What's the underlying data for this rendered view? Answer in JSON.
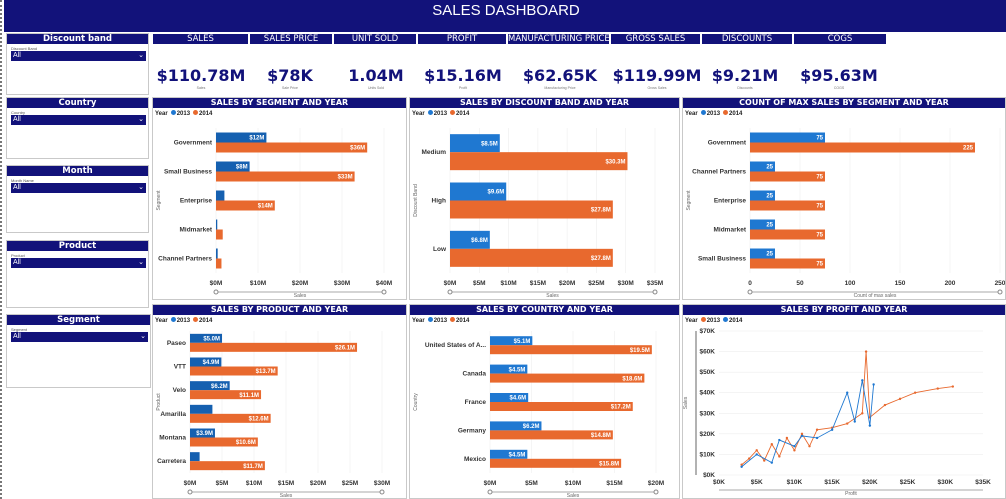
{
  "header": {
    "title": "SALES DASHBOARD"
  },
  "kpis": [
    {
      "label": "SALES",
      "value": "$110.78M",
      "sub": "Sales"
    },
    {
      "label": "SALES PRICE",
      "value": "$78K",
      "sub": "Sale Price"
    },
    {
      "label": "UNIT SOLD",
      "value": "1.04M",
      "sub": "Units Sold"
    },
    {
      "label": "PROFIT",
      "value": "$15.16M",
      "sub": "Profit"
    },
    {
      "label": "MANUFACTURING PRICE",
      "value": "$62.65K",
      "sub": "Manufacturing Price"
    },
    {
      "label": "GROSS SALES",
      "value": "$119.99M",
      "sub": "Gross Sales"
    },
    {
      "label": "DISCOUNTS",
      "value": "$9.21M",
      "sub": "Discounts"
    },
    {
      "label": "COGS",
      "value": "$95.63M",
      "sub": "COGS"
    }
  ],
  "slicers": [
    {
      "label": "Discount band",
      "field": "Discount Band",
      "value": "All"
    },
    {
      "label": "Country",
      "field": "Country",
      "value": "All"
    },
    {
      "label": "Month",
      "field": "Month Name",
      "value": "All"
    },
    {
      "label": "Product",
      "field": "Product",
      "value": "All"
    },
    {
      "label": "Segment",
      "field": "Segment",
      "value": "All"
    }
  ],
  "legend": {
    "title": "Year",
    "s2013": "2013",
    "s2014": "2014"
  },
  "colors": {
    "navy": "#12127a",
    "c2013": "#1f78d1",
    "c2014": "#e8692e",
    "dark2013": "#1560b0"
  },
  "chart_data": [
    {
      "id": "seg",
      "type": "bar",
      "title": "SALES BY SEGMENT AND YEAR",
      "categories": [
        "Government",
        "Small Business",
        "Enterprise",
        "Midmarket",
        "Channel Partners"
      ],
      "series": [
        {
          "name": "2013",
          "values": [
            12,
            8,
            2,
            0.3,
            0.4
          ],
          "labels": [
            "$12M",
            "$8M",
            "",
            "",
            ""
          ]
        },
        {
          "name": "2014",
          "values": [
            36,
            33,
            14,
            1.6,
            1.3
          ],
          "labels": [
            "$36M",
            "$33M",
            "$14M",
            "",
            ""
          ]
        }
      ],
      "ticks": [
        "$0M",
        "$10M",
        "$20M",
        "$30M",
        "$40M"
      ],
      "xmax": 40,
      "ylabel": "Segment",
      "xlabel": "Sales"
    },
    {
      "id": "disc",
      "type": "bar",
      "title": "SALES BY DISCOUNT BAND AND YEAR",
      "categories": [
        "Medium",
        "High",
        "Low"
      ],
      "series": [
        {
          "name": "2013",
          "values": [
            8.5,
            9.6,
            6.8
          ],
          "labels": [
            "$8.5M",
            "$9.6M",
            "$6.8M"
          ]
        },
        {
          "name": "2014",
          "values": [
            30.3,
            27.8,
            27.8
          ],
          "labels": [
            "$30.3M",
            "$27.8M",
            "$27.8M"
          ]
        }
      ],
      "ticks": [
        "$0M",
        "$5M",
        "$10M",
        "$15M",
        "$20M",
        "$25M",
        "$30M",
        "$35M"
      ],
      "xmax": 35,
      "ylabel": "Discount Band",
      "xlabel": "Sales"
    },
    {
      "id": "cnt",
      "type": "bar",
      "title": "COUNT OF MAX SALES BY SEGMENT AND YEAR",
      "categories": [
        "Government",
        "Channel Partners",
        "Enterprise",
        "Midmarket",
        "Small Business"
      ],
      "series": [
        {
          "name": "2013",
          "values": [
            75,
            25,
            25,
            25,
            25
          ],
          "labels": [
            "75",
            "25",
            "25",
            "25",
            "25"
          ]
        },
        {
          "name": "2014",
          "values": [
            225,
            75,
            75,
            75,
            75
          ],
          "labels": [
            "225",
            "75",
            "75",
            "75",
            "75"
          ]
        }
      ],
      "ticks": [
        "0",
        "50",
        "100",
        "150",
        "200",
        "250"
      ],
      "xmax": 250,
      "ylabel": "Segment",
      "xlabel": "Count of max sales"
    },
    {
      "id": "prod",
      "type": "bar",
      "title": "SALES BY PRODUCT AND YEAR",
      "categories": [
        "Paseo",
        "VTT",
        "Velo",
        "Amarilla",
        "Montana",
        "Carretera"
      ],
      "series": [
        {
          "name": "2013",
          "values": [
            5.0,
            4.9,
            6.2,
            3.5,
            3.9,
            1.5
          ],
          "labels": [
            "$5.0M",
            "$4.9M",
            "$6.2M",
            "",
            "$3.9M",
            ""
          ]
        },
        {
          "name": "2014",
          "values": [
            26.1,
            13.7,
            11.1,
            12.6,
            10.6,
            11.7
          ],
          "labels": [
            "$26.1M",
            "$13.7M",
            "$11.1M",
            "$12.6M",
            "$10.6M",
            "$11.7M"
          ]
        }
      ],
      "ticks": [
        "$0M",
        "$5M",
        "$10M",
        "$15M",
        "$20M",
        "$25M",
        "$30M"
      ],
      "xmax": 30,
      "ylabel": "Product",
      "xlabel": "Sales"
    },
    {
      "id": "ctry",
      "type": "bar",
      "title": "SALES BY COUNTRY AND YEAR",
      "categories": [
        "United States of A...",
        "Canada",
        "France",
        "Germany",
        "Mexico"
      ],
      "series": [
        {
          "name": "2013",
          "values": [
            5.1,
            4.5,
            4.6,
            6.2,
            4.5
          ],
          "labels": [
            "$5.1M",
            "$4.5M",
            "$4.6M",
            "$6.2M",
            "$4.5M"
          ]
        },
        {
          "name": "2014",
          "values": [
            19.5,
            18.6,
            17.2,
            14.8,
            15.8
          ],
          "labels": [
            "$19.5M",
            "$18.6M",
            "$17.2M",
            "$14.8M",
            "$15.8M"
          ]
        }
      ],
      "ticks": [
        "$0M",
        "$5M",
        "$10M",
        "$15M",
        "$20M"
      ],
      "xmax": 20,
      "ylabel": "Country",
      "xlabel": "Sales"
    },
    {
      "id": "prof",
      "type": "line",
      "title": "SALES BY PROFIT AND YEAR",
      "xlabel": "Profit",
      "ylabel": "Sales",
      "xticks": [
        "$0K",
        "$5K",
        "$10K",
        "$15K",
        "$20K",
        "$25K",
        "$30K",
        "$35K"
      ],
      "yticks": [
        "$0K",
        "$10K",
        "$20K",
        "$30K",
        "$40K",
        "$50K",
        "$60K",
        "$70K"
      ],
      "xlim": [
        0,
        35
      ],
      "ylim": [
        0,
        70
      ],
      "series": [
        {
          "name": "2013",
          "points": [
            [
              3,
              5
            ],
            [
              4,
              8
            ],
            [
              5,
              12
            ],
            [
              6,
              7
            ],
            [
              7,
              15
            ],
            [
              8,
              9
            ],
            [
              9,
              18
            ],
            [
              10,
              12
            ],
            [
              11,
              20
            ],
            [
              12,
              14
            ],
            [
              13,
              22
            ],
            [
              15,
              23
            ],
            [
              17,
              25
            ],
            [
              19,
              30
            ],
            [
              19.5,
              60
            ],
            [
              20,
              28
            ],
            [
              22,
              34
            ],
            [
              24,
              37
            ],
            [
              26,
              40
            ],
            [
              29,
              42
            ],
            [
              31,
              43
            ]
          ]
        },
        {
          "name": "2014",
          "points": [
            [
              3,
              4
            ],
            [
              5,
              10
            ],
            [
              7,
              6
            ],
            [
              8,
              17
            ],
            [
              10,
              14
            ],
            [
              11,
              19
            ],
            [
              13,
              18
            ],
            [
              15,
              22
            ],
            [
              17,
              40
            ],
            [
              18,
              26
            ],
            [
              19,
              46
            ],
            [
              20,
              24
            ],
            [
              20.5,
              44
            ]
          ]
        }
      ]
    }
  ]
}
